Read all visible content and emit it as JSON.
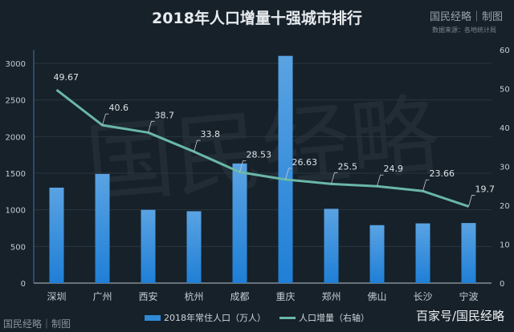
{
  "header": {
    "title": "2018年人口增量十强城市排行",
    "brand": "国民经略｜制图",
    "source": "数据来源：各地统计局"
  },
  "footer": {
    "left": "国民经略｜制图",
    "right": "百家号/国民经略"
  },
  "watermark": "国民经略",
  "colors": {
    "bar": "#2f8ad8",
    "line": "#6ab7a8",
    "background": "#16212a"
  },
  "chart_data": {
    "type": "bar+line",
    "title": "2018年人口增量十强城市排行",
    "categories": [
      "深圳",
      "广州",
      "西安",
      "杭州",
      "成都",
      "重庆",
      "郑州",
      "佛山",
      "长沙",
      "宁波"
    ],
    "series": [
      {
        "name": "2018年常住人口（万人）",
        "type": "bar",
        "axis": "left",
        "values": [
          1303,
          1490,
          1000,
          981,
          1633,
          3102,
          1014,
          791,
          815,
          820
        ]
      },
      {
        "name": "人口增量（右轴）",
        "type": "line",
        "axis": "right",
        "values": [
          49.67,
          40.6,
          38.7,
          33.8,
          28.53,
          26.63,
          25.5,
          24.9,
          23.66,
          19.7
        ],
        "labels": [
          "49.67",
          "40.6",
          "38.7",
          "33.8",
          "28.53",
          "26.63",
          "25.5",
          "24.9",
          "23.66",
          "19.7"
        ]
      }
    ],
    "left_axis": {
      "ylim": [
        0,
        3000
      ],
      "ticks": [
        "0",
        "500",
        "1000",
        "1500",
        "2000",
        "2500",
        "3000"
      ]
    },
    "right_axis": {
      "ylim": [
        0,
        60
      ],
      "ticks": [
        "0",
        "10",
        "20",
        "30",
        "40",
        "50",
        "60"
      ]
    },
    "grid": true,
    "legend": "bottom-center"
  }
}
